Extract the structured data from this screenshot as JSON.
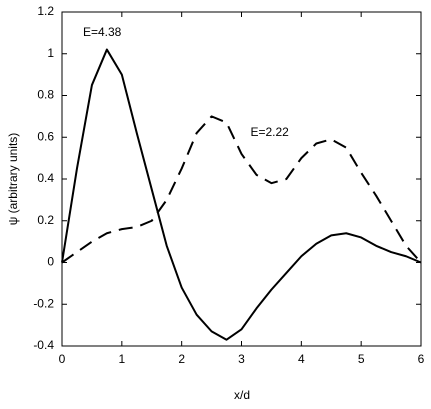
{
  "chart_data": {
    "type": "line",
    "xlabel": "x/d",
    "ylabel": "ψ (arbitrary units)",
    "x": [
      0,
      0.25,
      0.5,
      0.75,
      1,
      1.25,
      1.5,
      1.75,
      2,
      2.25,
      2.5,
      2.75,
      3,
      3.25,
      3.5,
      3.75,
      4,
      4.25,
      4.5,
      4.75,
      5,
      5.25,
      5.5,
      5.75,
      6
    ],
    "series": [
      {
        "name": "E=4.38",
        "color": "#000000",
        "dash": "solid",
        "values": [
          0,
          0.45,
          0.85,
          1.02,
          0.9,
          0.62,
          0.35,
          0.08,
          -0.12,
          -0.25,
          -0.33,
          -0.37,
          -0.32,
          -0.22,
          -0.13,
          -0.05,
          0.03,
          0.09,
          0.13,
          0.14,
          0.12,
          0.08,
          0.05,
          0.03,
          0
        ]
      },
      {
        "name": "E=2.22",
        "color": "#000000",
        "dash": "dashed",
        "values": [
          0,
          0.05,
          0.1,
          0.14,
          0.16,
          0.17,
          0.2,
          0.3,
          0.45,
          0.62,
          0.7,
          0.67,
          0.52,
          0.42,
          0.38,
          0.4,
          0.5,
          0.57,
          0.59,
          0.55,
          0.43,
          0.32,
          0.2,
          0.08,
          0
        ]
      }
    ],
    "xlim": [
      0,
      6
    ],
    "xticks": [
      0,
      1,
      2,
      3,
      4,
      5,
      6
    ],
    "ylim": [
      -0.4,
      1.2
    ],
    "yticks": [
      -0.4,
      -0.2,
      0,
      0.2,
      0.4,
      0.6,
      0.8,
      1,
      1.2
    ],
    "grid": false
  }
}
